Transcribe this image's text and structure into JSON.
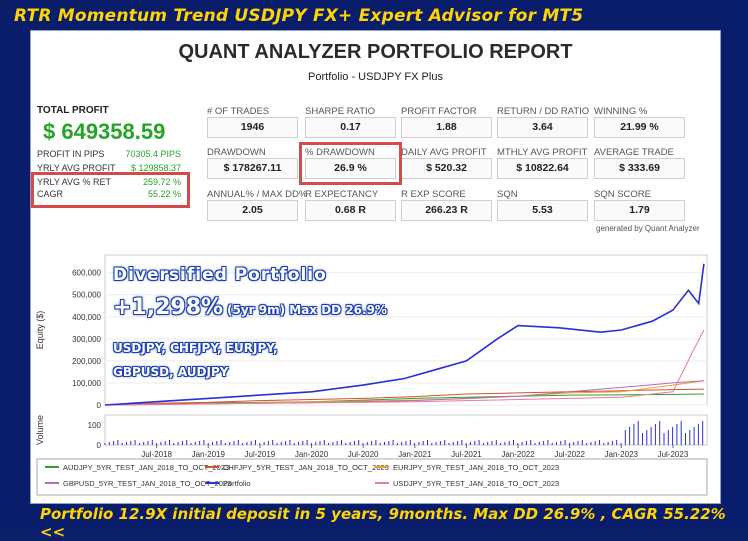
{
  "banner": {
    "top": "RTR Momentum Trend USDJPY FX+ Expert Advisor for MT5",
    "bottom": "Portfolio 12.9X initial deposit in 5 years, 9months. Max DD 26.9% , CAGR 55.22% <<"
  },
  "report": {
    "title": "QUANT ANALYZER PORTFOLIO REPORT",
    "subtitle": "Portfolio - USDJPY FX Plus",
    "generated_by": "generated by Quant Analyzer"
  },
  "summary": {
    "total_profit_label": "TOTAL PROFIT",
    "total_profit_value": "$ 649358.59",
    "profit_in_pips_label": "PROFIT IN PIPS",
    "profit_in_pips_value": "70305.4 PIPS",
    "yrly_avg_profit_label": "YRLY AVG PROFIT",
    "yrly_avg_profit_value": "$ 129858.37",
    "yrly_avg_ret_label": "YRLY AVG % RET",
    "yrly_avg_ret_value": "259.72 %",
    "cagr_label": "CAGR",
    "cagr_value": "55.22 %"
  },
  "stats": [
    {
      "label": "# OF TRADES",
      "value": "1946"
    },
    {
      "label": "SHARPE RATIO",
      "value": "0.17"
    },
    {
      "label": "PROFIT FACTOR",
      "value": "1.88"
    },
    {
      "label": "RETURN / DD RATIO",
      "value": "3.64"
    },
    {
      "label": "WINNING %",
      "value": "21.99 %"
    },
    {
      "label": "DRAWDOWN",
      "value": "$ 178267.11"
    },
    {
      "label": "% DRAWDOWN",
      "value": "26.9 %"
    },
    {
      "label": "DAILY AVG PROFIT",
      "value": "$ 520.32"
    },
    {
      "label": "MTHLY AVG PROFIT",
      "value": "$ 10822.64"
    },
    {
      "label": "AVERAGE TRADE",
      "value": "$ 333.69"
    },
    {
      "label": "ANNUAL% / MAX DD%",
      "value": "2.05"
    },
    {
      "label": "R EXPECTANCY",
      "value": "0.68 R"
    },
    {
      "label": "R EXP SCORE",
      "value": "266.23 R"
    },
    {
      "label": "SQN",
      "value": "5.53"
    },
    {
      "label": "SQN SCORE",
      "value": "1.79"
    }
  ],
  "overlay": {
    "line1": "Diversified Portfolio",
    "line2_big": "+1,298%",
    "line2_small": "(5yr 9m) Max DD 26.9%",
    "line3": "USDJPY, CHFJPY, EURJPY,",
    "line4": "GBPUSD, AUDJPY"
  },
  "colors": {
    "banner_text": "#ffd400",
    "frame_bg": "#0a1d6a",
    "profit_green": "#27a327",
    "highlight_red": "#d64a4a",
    "portfolio_blue": "#2a2fd6"
  },
  "chart_data": {
    "type": "line",
    "ylabel": "Equity ($)",
    "volume_label": "Volume",
    "ylim": [
      0,
      680000
    ],
    "yticks": [
      "0",
      "100,000",
      "200,000",
      "300,000",
      "400,000",
      "500,000",
      "600,000"
    ],
    "volume_ticks": [
      "0",
      "100"
    ],
    "xticks": [
      "Jul-2018",
      "Jan-2019",
      "Jul-2019",
      "Jan-2020",
      "Jul-2020",
      "Jan-2021",
      "Jul-2021",
      "Jan-2022",
      "Jul-2022",
      "Jan-2023",
      "Jul-2023"
    ],
    "x_start": 2018.0,
    "x_end": 2023.83,
    "series": [
      {
        "name": "AUDJPY_5YR_TEST_JAN_2018_TO_OCT_2023",
        "color": "#2e9e2e",
        "x": [
          2018.0,
          2018.5,
          2019.0,
          2019.5,
          2020.0,
          2020.5,
          2021.0,
          2021.5,
          2022.0,
          2022.5,
          2023.0,
          2023.5,
          2023.8
        ],
        "y": [
          0,
          5000,
          10000,
          12000,
          15000,
          22000,
          30000,
          35000,
          40000,
          45000,
          46000,
          48000,
          50000
        ]
      },
      {
        "name": "CHFJPY_5YR_TEST_JAN_2018_TO_OCT_2023",
        "color": "#d0542a",
        "x": [
          2018.0,
          2018.5,
          2019.0,
          2019.5,
          2020.0,
          2020.5,
          2021.0,
          2021.5,
          2022.0,
          2022.5,
          2023.0,
          2023.5,
          2023.8
        ],
        "y": [
          0,
          8000,
          12000,
          20000,
          25000,
          30000,
          38000,
          50000,
          55000,
          60000,
          65000,
          70000,
          72000
        ]
      },
      {
        "name": "EURJPY_5YR_TEST_JAN_2018_TO_OCT_2023",
        "color": "#f0a030",
        "x": [
          2018.0,
          2018.5,
          2019.0,
          2019.5,
          2020.0,
          2020.5,
          2021.0,
          2021.5,
          2022.0,
          2022.5,
          2023.0,
          2023.5,
          2023.8
        ],
        "y": [
          0,
          3000,
          6000,
          10000,
          14000,
          18000,
          22000,
          28000,
          40000,
          55000,
          60000,
          90000,
          110000
        ]
      },
      {
        "name": "GBPUSD_5YR_TEST_JAN_2018_TO_OCT_2023",
        "color": "#b070c0",
        "x": [
          2018.0,
          2018.5,
          2019.0,
          2019.5,
          2020.0,
          2020.5,
          2021.0,
          2021.5,
          2022.0,
          2022.5,
          2023.0,
          2023.5,
          2023.8
        ],
        "y": [
          0,
          2000,
          5000,
          8000,
          10000,
          15000,
          20000,
          30000,
          40000,
          60000,
          80000,
          100000,
          110000
        ]
      },
      {
        "name": "Portfolio",
        "color": "#2a2fd6",
        "x": [
          2018.0,
          2018.5,
          2019.0,
          2019.5,
          2020.0,
          2020.5,
          2020.9,
          2021.2,
          2021.5,
          2021.8,
          2022.0,
          2022.4,
          2022.8,
          2023.0,
          2023.3,
          2023.5,
          2023.65,
          2023.75,
          2023.8
        ],
        "y": [
          0,
          15000,
          30000,
          45000,
          60000,
          90000,
          120000,
          160000,
          200000,
          300000,
          360000,
          350000,
          330000,
          340000,
          380000,
          430000,
          520000,
          460000,
          640000
        ]
      },
      {
        "name": "USDJPY_5YR_TEST_JAN_2018_TO_OCT_2023",
        "color": "#e87aa0",
        "x": [
          2018.0,
          2018.5,
          2019.0,
          2019.5,
          2020.0,
          2020.5,
          2021.0,
          2021.5,
          2022.0,
          2022.5,
          2023.0,
          2023.5,
          2023.7,
          2023.8
        ],
        "y": [
          0,
          3000,
          5000,
          8000,
          10000,
          12000,
          15000,
          20000,
          25000,
          30000,
          35000,
          60000,
          250000,
          340000
        ]
      }
    ]
  }
}
